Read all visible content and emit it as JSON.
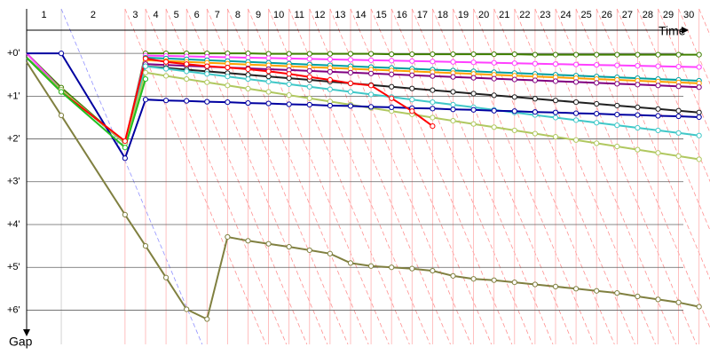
{
  "chart_data": {
    "type": "line",
    "x_label": "Time",
    "y_label": "Gap",
    "laps": [
      "1",
      "2",
      "3",
      "4",
      "5",
      "6",
      "7",
      "8",
      "9",
      "10",
      "11",
      "12",
      "13",
      "14",
      "15",
      "16",
      "17",
      "18",
      "19",
      "20",
      "21",
      "22",
      "23",
      "24",
      "25",
      "26",
      "27",
      "28",
      "29",
      "30"
    ],
    "x": [
      0,
      1.69,
      4.8,
      5.8,
      6.8,
      7.8,
      8.8,
      9.8,
      10.8,
      11.8,
      12.8,
      13.8,
      14.8,
      15.8,
      16.8,
      17.8,
      18.8,
      19.8,
      20.8,
      21.8,
      22.8,
      23.8,
      24.8,
      25.8,
      26.8,
      27.8,
      28.8,
      29.8,
      30.8,
      31.8,
      32.8
    ],
    "xlim": [
      0,
      33.3
    ],
    "ylim": [
      -1.04,
      6.8
    ],
    "yticks": [
      {
        "value": 0,
        "label": "+0'"
      },
      {
        "value": 1,
        "label": "+1'"
      },
      {
        "value": 2,
        "label": "+2'"
      },
      {
        "value": 3,
        "label": "+3'"
      },
      {
        "value": 4,
        "label": "+4'"
      },
      {
        "value": 5,
        "label": "+5'"
      },
      {
        "value": 6,
        "label": "+6'"
      }
    ],
    "grid": true,
    "series": [
      {
        "color": "#408000",
        "values": [
          0,
          0.8,
          2.1,
          0,
          0,
          0,
          0,
          0,
          0,
          0.01,
          0.01,
          0.01,
          0.01,
          0.01,
          0.01,
          0.02,
          0.02,
          0.02,
          0.02,
          0.02,
          0.02,
          0.02,
          0.03,
          0.03,
          0.03,
          0.03,
          0.03,
          0.03,
          0.03,
          0.03,
          0.03
        ]
      },
      {
        "color": "#ff40ff",
        "values": [
          0,
          0.85,
          2.1,
          0.05,
          0.06,
          0.07,
          0.08,
          0.09,
          0.1,
          0.11,
          0.12,
          0.13,
          0.14,
          0.15,
          0.16,
          0.17,
          0.18,
          0.19,
          0.2,
          0.21,
          0.22,
          0.23,
          0.24,
          0.25,
          0.26,
          0.27,
          0.28,
          0.29,
          0.3,
          0.31,
          0.32
        ]
      },
      {
        "color": "#00a0a0",
        "values": [
          0.1,
          0.85,
          2.1,
          0.1,
          0.12,
          0.14,
          0.16,
          0.18,
          0.2,
          0.22,
          0.24,
          0.26,
          0.28,
          0.3,
          0.32,
          0.34,
          0.36,
          0.38,
          0.4,
          0.42,
          0.44,
          0.46,
          0.48,
          0.5,
          0.52,
          0.54,
          0.56,
          0.58,
          0.6,
          0.62,
          0.64
        ]
      },
      {
        "color": "#ffa000",
        "values": [
          0.1,
          0.85,
          2.1,
          0.16,
          0.18,
          0.2,
          0.22,
          0.24,
          0.26,
          0.28,
          0.3,
          0.32,
          0.34,
          0.36,
          0.38,
          0.4,
          0.42,
          0.44,
          0.46,
          0.48,
          0.5,
          0.52,
          0.54,
          0.56,
          0.58,
          0.6,
          0.62,
          0.64,
          0.66,
          0.68,
          0.7
        ]
      },
      {
        "color": "#800080",
        "values": [
          0.1,
          0.85,
          2.1,
          0.25,
          0.27,
          0.29,
          0.31,
          0.33,
          0.35,
          0.37,
          0.39,
          0.41,
          0.43,
          0.45,
          0.47,
          0.49,
          0.51,
          0.53,
          0.55,
          0.57,
          0.59,
          0.61,
          0.63,
          0.65,
          0.67,
          0.69,
          0.71,
          0.73,
          0.75,
          0.77,
          0.79
        ]
      },
      {
        "color": "#202020",
        "values": [
          0.1,
          0.85,
          2.1,
          0.3,
          0.34,
          0.38,
          0.42,
          0.46,
          0.5,
          0.54,
          0.58,
          0.62,
          0.66,
          0.7,
          0.74,
          0.78,
          0.82,
          0.86,
          0.9,
          0.94,
          0.98,
          1.02,
          1.06,
          1.1,
          1.14,
          1.18,
          1.22,
          1.26,
          1.3,
          1.34,
          1.38
        ]
      },
      {
        "color": "#40c8c8",
        "values": [
          0.1,
          0.85,
          2.1,
          0.3,
          0.36,
          0.42,
          0.48,
          0.54,
          0.6,
          0.66,
          0.72,
          0.78,
          0.84,
          0.9,
          0.96,
          1.02,
          1.08,
          1.14,
          1.2,
          1.26,
          1.32,
          1.38,
          1.44,
          1.5,
          1.56,
          1.62,
          1.68,
          1.74,
          1.8,
          1.86,
          1.92
        ]
      },
      {
        "color": "#b0c860",
        "values": [
          0.1,
          0.85,
          2.1,
          0.45,
          0.525,
          0.6,
          0.675,
          0.75,
          0.825,
          0.9,
          0.975,
          1.05,
          1.125,
          1.2,
          1.275,
          1.35,
          1.425,
          1.5,
          1.575,
          1.65,
          1.725,
          1.8,
          1.875,
          1.95,
          2.025,
          2.1,
          2.175,
          2.25,
          2.325,
          2.4,
          2.475
        ]
      },
      {
        "color": "#0000a0",
        "values": [
          0,
          0,
          2.45,
          1.08,
          1.1,
          1.11,
          1.13,
          1.14,
          1.16,
          1.17,
          1.19,
          1.2,
          1.22,
          1.23,
          1.25,
          1.26,
          1.28,
          1.29,
          1.31,
          1.32,
          1.34,
          1.35,
          1.37,
          1.38,
          1.4,
          1.41,
          1.43,
          1.44,
          1.46,
          1.47,
          1.49
        ]
      },
      {
        "color": "#ff0000",
        "values": [
          0.1,
          0.9,
          2.05,
          0.12,
          0.2,
          0.25,
          0.3,
          0.33,
          0.37,
          0.42,
          0.48,
          0.55,
          0.62,
          0.7,
          0.75,
          1.05,
          1.35,
          1.7,
          null,
          null,
          null,
          null,
          null,
          null,
          null,
          null,
          null,
          null,
          null,
          null,
          null
        ]
      },
      {
        "color": "#20c020",
        "values": [
          0.1,
          0.9,
          2.2,
          0.6,
          null,
          null,
          null,
          null,
          null,
          null,
          null,
          null,
          null,
          null,
          null,
          null,
          null,
          null,
          null,
          null,
          null,
          null,
          null,
          null,
          null,
          null,
          null,
          null,
          null,
          null,
          null
        ]
      },
      {
        "color": "#808040",
        "values": [
          0.2,
          1.45,
          3.77,
          4.5,
          5.24,
          5.98,
          6.21,
          4.29,
          4.38,
          4.45,
          4.52,
          4.6,
          4.68,
          4.9,
          4.97,
          5.0,
          5.03,
          5.08,
          5.2,
          5.27,
          5.3,
          5.35,
          5.4,
          5.45,
          5.5,
          5.55,
          5.6,
          5.68,
          5.75,
          5.82,
          5.92
        ]
      }
    ]
  }
}
